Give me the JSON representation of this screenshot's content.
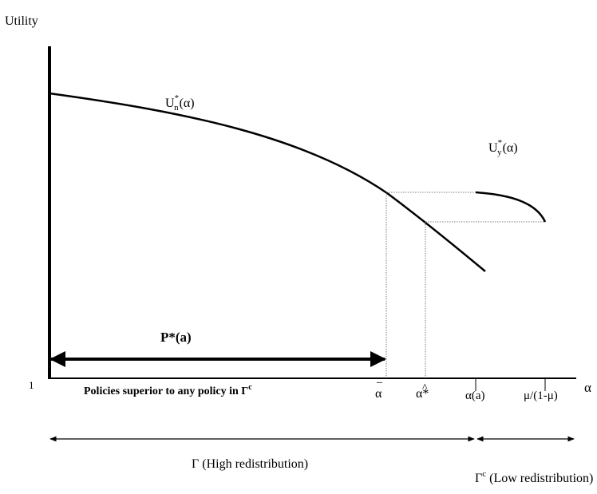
{
  "y_axis_label": "Utility",
  "x_axis_label": "α",
  "curves": {
    "un": {
      "base": "U",
      "sup": "*",
      "sub": "n",
      "arg": "(α)"
    },
    "uy": {
      "base": "U",
      "sup": "*",
      "sub": "y",
      "arg": "(α)"
    }
  },
  "ticks": {
    "one": "1",
    "alpha_bar": "α",
    "alpha_bar_accent": "_",
    "alpha_hat": "α*",
    "alpha_hat_accent": "^",
    "alpha_a": "α(a)",
    "mu": "μ/(1-μ)"
  },
  "p_star": "P*(a)",
  "policies": {
    "text": "Policies superior to any policy in Γ",
    "sup": "c"
  },
  "gamma": "Γ (High redistribution)",
  "gamma_c": {
    "base": "Γ",
    "sup": "c",
    "rest": " (Low redistribution)"
  }
}
